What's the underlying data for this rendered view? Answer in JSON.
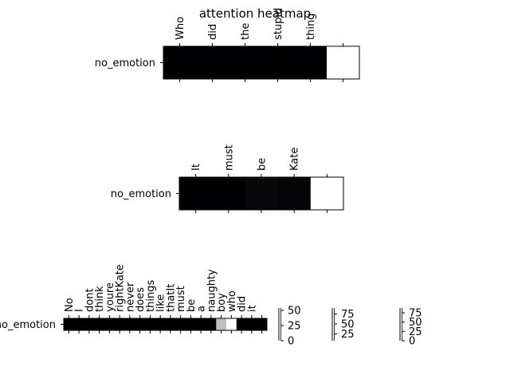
{
  "title": "attention heatmap",
  "chart_data": [
    {
      "type": "heatmap",
      "row_label": "no_emotion",
      "columns": [
        "Who",
        "did",
        "the",
        "stupid",
        "thing",
        ""
      ],
      "values": [
        [
          1,
          1,
          1,
          1,
          1,
          0
        ]
      ],
      "colorbar_ticks": [
        0,
        25,
        50
      ]
    },
    {
      "type": "heatmap",
      "row_label": "no_emotion",
      "columns": [
        "It",
        "must",
        "be",
        "Kate",
        ""
      ],
      "values": [
        [
          1,
          1,
          0.97,
          0.98,
          0
        ]
      ],
      "colorbar_ticks": [
        25,
        50,
        75
      ]
    },
    {
      "type": "heatmap",
      "row_label": "no_emotion",
      "columns": [
        "No",
        "I",
        "dont",
        "think",
        "youre",
        "rightKate",
        "never",
        "does",
        "things",
        "like",
        "thatIt",
        "must",
        "be",
        "a",
        "naughty",
        "boy",
        "who",
        "did",
        "it",
        ""
      ],
      "values": [
        [
          1,
          1,
          1,
          1,
          1,
          1,
          1,
          1,
          1,
          1,
          1,
          1,
          1,
          1,
          1,
          0.25,
          0,
          1,
          1,
          1
        ]
      ],
      "colorbar_ticks": [
        0,
        25,
        50,
        75
      ]
    }
  ]
}
